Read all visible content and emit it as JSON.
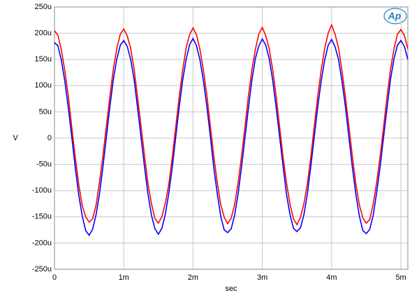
{
  "chart_data": {
    "type": "line",
    "logo": "Ap",
    "ylabel": "V",
    "xlabel": "sec",
    "xlim": [
      0,
      5.1
    ],
    "ylim": [
      -250,
      250
    ],
    "xticks": [
      0,
      {
        "value": 1,
        "label": "1m"
      },
      {
        "value": 2,
        "label": "2m"
      },
      {
        "value": 3,
        "label": "3m"
      },
      {
        "value": 4,
        "label": "4m"
      },
      {
        "value": 5,
        "label": "5m"
      }
    ],
    "yticks": [
      {
        "value": -250,
        "label": "-250u"
      },
      {
        "value": -200,
        "label": "-200u"
      },
      {
        "value": -150,
        "label": "-150u"
      },
      {
        "value": -100,
        "label": "-100u"
      },
      {
        "value": -50,
        "label": "-50u"
      },
      0,
      {
        "value": 50,
        "label": "50u"
      },
      {
        "value": 100,
        "label": "100u"
      },
      {
        "value": 150,
        "label": "150u"
      },
      {
        "value": 200,
        "label": "200u"
      },
      {
        "value": 250,
        "label": "250u"
      }
    ],
    "grid": true,
    "x": [
      0,
      0.05,
      0.1,
      0.15,
      0.2,
      0.25,
      0.3,
      0.35,
      0.4,
      0.45,
      0.5,
      0.55,
      0.6,
      0.65,
      0.7,
      0.75,
      0.8,
      0.85,
      0.9,
      0.95,
      1,
      1.05,
      1.1,
      1.15,
      1.2,
      1.25,
      1.3,
      1.35,
      1.4,
      1.45,
      1.5,
      1.55,
      1.6,
      1.65,
      1.7,
      1.75,
      1.8,
      1.85,
      1.9,
      1.95,
      2,
      2.05,
      2.1,
      2.15,
      2.2,
      2.25,
      2.3,
      2.35,
      2.4,
      2.45,
      2.5,
      2.55,
      2.6,
      2.65,
      2.7,
      2.75,
      2.8,
      2.85,
      2.9,
      2.95,
      3,
      3.05,
      3.1,
      3.15,
      3.2,
      3.25,
      3.3,
      3.35,
      3.4,
      3.45,
      3.5,
      3.55,
      3.6,
      3.65,
      3.7,
      3.75,
      3.8,
      3.85,
      3.9,
      3.95,
      4,
      4.05,
      4.1,
      4.15,
      4.2,
      4.25,
      4.3,
      4.35,
      4.4,
      4.45,
      4.5,
      4.55,
      4.6,
      4.65,
      4.7,
      4.75,
      4.8,
      4.85,
      4.9,
      4.95,
      5,
      5.05,
      5.1
    ],
    "series": [
      {
        "color": "#0000ff",
        "values": [
          182,
          176,
          148,
          108,
          58,
          2,
          -56,
          -108,
          -148,
          -176,
          -185,
          -174,
          -146,
          -106,
          -54,
          3,
          60,
          112,
          151,
          177,
          186,
          175,
          150,
          111,
          57,
          1,
          -55,
          -107,
          -147,
          -173,
          -183,
          -172,
          -145,
          -105,
          -56,
          2,
          59,
          110,
          150,
          178,
          190,
          176,
          149,
          109,
          60,
          3,
          -57,
          -106,
          -149,
          -175,
          -180,
          -173,
          -147,
          -107,
          -55,
          1,
          58,
          111,
          152,
          176,
          189,
          177,
          151,
          110,
          58,
          2,
          -54,
          -108,
          -146,
          -172,
          -178,
          -171,
          -146,
          -106,
          -54,
          3,
          60,
          109,
          149,
          177,
          188,
          174,
          150,
          108,
          59,
          1,
          -56,
          -107,
          -148,
          -176,
          -182,
          -174,
          -147,
          -104,
          -55,
          2,
          58,
          112,
          151,
          177,
          186,
          175,
          150
        ]
      },
      {
        "color": "#ff0000",
        "values": [
          205,
          196,
          168,
          128,
          80,
          20,
          -36,
          -88,
          -128,
          -150,
          -160,
          -154,
          -128,
          -84,
          -33,
          24,
          80,
          132,
          171,
          198,
          208,
          195,
          171,
          131,
          77,
          22,
          -34,
          -87,
          -125,
          -153,
          -162,
          -150,
          -124,
          -88,
          -37,
          21,
          78,
          129,
          172,
          197,
          210,
          197,
          169,
          129,
          81,
          23,
          -35,
          -85,
          -127,
          -151,
          -163,
          -153,
          -127,
          -86,
          -34,
          22,
          81,
          131,
          169,
          199,
          211,
          195,
          170,
          130,
          79,
          21,
          -37,
          -86,
          -126,
          -154,
          -165,
          -151,
          -125,
          -87,
          -36,
          23,
          80,
          130,
          171,
          200,
          216,
          198,
          172,
          128,
          78,
          22,
          -35,
          -88,
          -127,
          -152,
          -162,
          -155,
          -126,
          -85,
          -35,
          21,
          79,
          131,
          170,
          198,
          207,
          196,
          170
        ]
      }
    ]
  }
}
